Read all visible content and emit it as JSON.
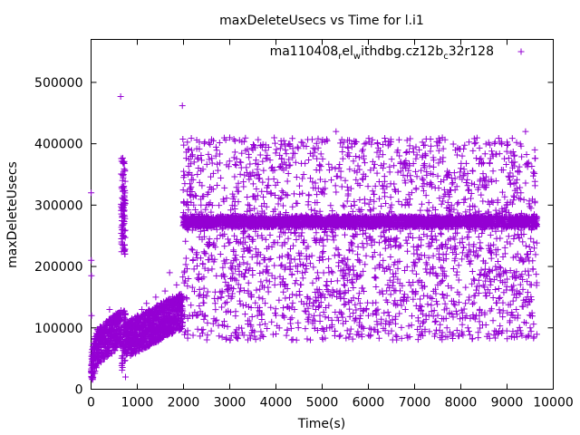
{
  "chart_data": {
    "type": "scatter",
    "title": "maxDeleteUsecs vs Time for l.i1",
    "xlabel": "Time(s)",
    "ylabel": "maxDeleteUsecs",
    "xlim": [
      0,
      10000
    ],
    "ylim": [
      0,
      570000
    ],
    "x_ticks": [
      "0",
      "1000",
      "2000",
      "3000",
      "4000",
      "5000",
      "6000",
      "7000",
      "8000",
      "9000",
      "10000"
    ],
    "y_ticks": [
      "0",
      "100000",
      "200000",
      "300000",
      "400000",
      "500000"
    ],
    "x_tick_values": [
      0,
      1000,
      2000,
      3000,
      4000,
      5000,
      6000,
      7000,
      8000,
      9000,
      10000
    ],
    "y_tick_values": [
      0,
      100000,
      200000,
      300000,
      400000,
      500000
    ],
    "grid": false,
    "legend_position": "top-right",
    "marker": "+",
    "series": [
      {
        "name": "ma110408_rel_withdbg.cz12b_c32r128",
        "legend_parts": {
          "p1": "ma110408",
          "s1": "r",
          "p2": "el",
          "s2": "w",
          "p3": "ithdbg.cz12b",
          "s3": "c",
          "p4": "32r128"
        },
        "color": "#9400d3",
        "points": [
          [
            2,
            320000
          ],
          [
            5,
            210000
          ],
          [
            8,
            185000
          ],
          [
            10,
            120000
          ],
          [
            15,
            60000
          ],
          [
            20,
            45000
          ],
          [
            30,
            35000
          ],
          [
            40,
            50000
          ],
          [
            50,
            70000
          ],
          [
            60,
            40000
          ],
          [
            80,
            65000
          ],
          [
            100,
            55000
          ],
          [
            120,
            75000
          ],
          [
            150,
            80000
          ],
          [
            180,
            60000
          ],
          [
            200,
            90000
          ],
          [
            220,
            70000
          ],
          [
            250,
            85000
          ],
          [
            280,
            95000
          ],
          [
            300,
            75000
          ],
          [
            320,
            100000
          ],
          [
            350,
            110000
          ],
          [
            380,
            90000
          ],
          [
            400,
            130000
          ],
          [
            420,
            80000
          ],
          [
            450,
            100000
          ],
          [
            480,
            120000
          ],
          [
            500,
            95000
          ],
          [
            530,
            105000
          ],
          [
            560,
            85000
          ],
          [
            600,
            110000
          ],
          [
            620,
            95000
          ],
          [
            660,
            240000
          ],
          [
            670,
            280000
          ],
          [
            680,
            260000
          ],
          [
            685,
            350000
          ],
          [
            690,
            310000
          ],
          [
            695,
            230000
          ],
          [
            700,
            370000
          ],
          [
            705,
            250000
          ],
          [
            710,
            290000
          ],
          [
            715,
            270000
          ],
          [
            720,
            300000
          ],
          [
            730,
            220000
          ],
          [
            745,
            20000
          ],
          [
            760,
            80000
          ],
          [
            800,
            70000
          ],
          [
            850,
            90000
          ],
          [
            900,
            100000
          ],
          [
            950,
            85000
          ],
          [
            1000,
            120000
          ],
          [
            1050,
            95000
          ],
          [
            1100,
            130000
          ],
          [
            1150,
            105000
          ],
          [
            1200,
            140000
          ],
          [
            1250,
            110000
          ],
          [
            1300,
            125000
          ],
          [
            1350,
            100000
          ],
          [
            1400,
            150000
          ],
          [
            1450,
            115000
          ],
          [
            1500,
            135000
          ],
          [
            1550,
            105000
          ],
          [
            1600,
            160000
          ],
          [
            1650,
            120000
          ],
          [
            1700,
            190000
          ],
          [
            1750,
            130000
          ],
          [
            1800,
            140000
          ],
          [
            1850,
            170000
          ],
          [
            1900,
            115000
          ],
          [
            1950,
            155000
          ],
          [
            640,
            477000
          ],
          [
            1975,
            462000
          ],
          [
            2000,
            280000
          ],
          [
            2100,
            390000
          ],
          [
            2200,
            120000
          ],
          [
            2300,
            350000
          ],
          [
            2400,
            180000
          ],
          [
            2500,
            300000
          ],
          [
            2600,
            95000
          ],
          [
            2700,
            380000
          ],
          [
            2800,
            220000
          ],
          [
            2900,
            140000
          ],
          [
            3000,
            410000
          ],
          [
            3100,
            250000
          ],
          [
            3200,
            100000
          ],
          [
            3300,
            330000
          ],
          [
            3400,
            160000
          ],
          [
            3500,
            390000
          ],
          [
            3600,
            120000
          ],
          [
            3700,
            290000
          ],
          [
            3800,
            200000
          ],
          [
            3900,
            360000
          ],
          [
            4000,
            90000
          ],
          [
            4100,
            310000
          ],
          [
            4200,
            170000
          ],
          [
            4300,
            400000
          ],
          [
            4400,
            130000
          ],
          [
            4500,
            250000
          ],
          [
            4600,
            350000
          ],
          [
            4700,
            110000
          ],
          [
            4800,
            380000
          ],
          [
            4900,
            190000
          ],
          [
            5000,
            320000
          ],
          [
            5100,
            100000
          ],
          [
            5200,
            260000
          ],
          [
            5300,
            420000
          ],
          [
            5400,
            150000
          ],
          [
            5500,
            340000
          ],
          [
            5600,
            90000
          ],
          [
            5700,
            300000
          ],
          [
            5800,
            210000
          ],
          [
            5900,
            380000
          ],
          [
            6000,
            120000
          ],
          [
            6100,
            270000
          ],
          [
            6200,
            400000
          ],
          [
            6300,
            160000
          ],
          [
            6400,
            330000
          ],
          [
            6500,
            95000
          ],
          [
            6600,
            240000
          ],
          [
            6700,
            370000
          ],
          [
            6800,
            130000
          ],
          [
            6900,
            310000
          ],
          [
            7000,
            200000
          ],
          [
            7100,
            390000
          ],
          [
            7200,
            110000
          ],
          [
            7300,
            280000
          ],
          [
            7400,
            350000
          ],
          [
            7500,
            170000
          ],
          [
            7600,
            410000
          ],
          [
            7700,
            100000
          ],
          [
            7800,
            300000
          ],
          [
            7900,
            220000
          ],
          [
            8000,
            360000
          ],
          [
            8100,
            140000
          ],
          [
            8200,
            260000
          ],
          [
            8300,
            400000
          ],
          [
            8400,
            120000
          ],
          [
            8500,
            330000
          ],
          [
            8600,
            190000
          ],
          [
            8700,
            380000
          ],
          [
            8800,
            90000
          ],
          [
            8900,
            290000
          ],
          [
            9000,
            240000
          ],
          [
            9100,
            370000
          ],
          [
            9200,
            130000
          ],
          [
            9300,
            320000
          ],
          [
            9400,
            420000
          ],
          [
            9500,
            100000
          ],
          [
            9550,
            280000
          ],
          [
            9600,
            390000
          ]
        ],
        "band": {
          "x_from": 1980,
          "x_to": 9650,
          "y_center": 273000,
          "y_halfwidth": 9000
        },
        "scatter_region": {
          "x_from": 1980,
          "x_to": 9650,
          "y_low": 80000,
          "y_high": 410000
        }
      }
    ]
  }
}
